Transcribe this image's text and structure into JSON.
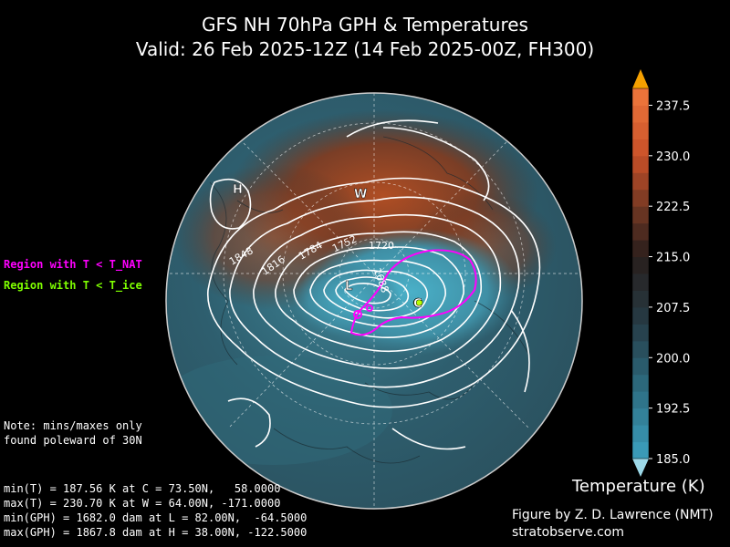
{
  "title": {
    "line1": "GFS NH 70hPa GPH & Temperatures",
    "line2": "Valid: 26 Feb 2025-12Z  (14 Feb 2025-00Z, FH300)"
  },
  "legend": {
    "nat": "Region with T < T_NAT",
    "ice": "Region with T < T_ice",
    "nat_color": "#ff00ff",
    "ice_color": "#7fff00"
  },
  "note": {
    "line1": "Note: mins/maxes only",
    "line2": "found poleward of 30N"
  },
  "stats": {
    "min_t": "min(T) = 187.56 K at C = 73.50N,   58.0000",
    "max_t": "max(T) = 230.70 K at W = 64.00N, -171.0000",
    "min_gph": "min(GPH) = 1682.0 dam at L = 82.00N,  -64.5000",
    "max_gph": "max(GPH) = 1867.8 dam at H = 38.00N, -122.5000"
  },
  "markers": {
    "H": "H",
    "W": "W",
    "L": "L",
    "C": "C"
  },
  "contour_labels": [
    "1848",
    "1816",
    "1784",
    "1752",
    "1720",
    "1688"
  ],
  "colorbar": {
    "title": "Temperature (K)",
    "ticks": [
      "237.5",
      "230.0",
      "222.5",
      "215.0",
      "207.5",
      "200.0",
      "192.5",
      "185.0"
    ],
    "min": 185.0,
    "max": 240.0
  },
  "credit": {
    "line1": "Figure by Z. D. Lawrence (NMT)",
    "line2": "stratobserve.com"
  }
}
